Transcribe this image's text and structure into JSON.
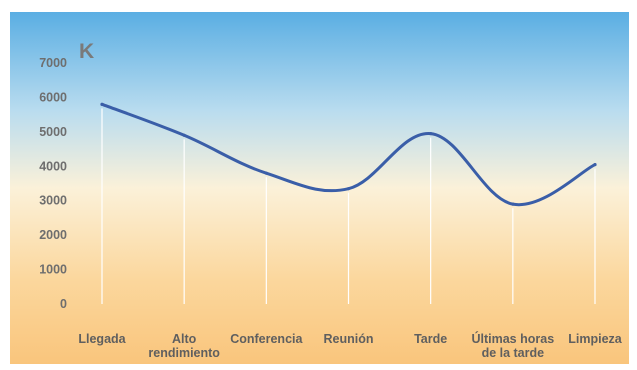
{
  "chart_data": {
    "type": "line",
    "unit_label": "K",
    "categories": [
      "Llegada",
      "Alto rendimiento",
      "Conferencia",
      "Reunión",
      "Tarde",
      "Últimas horas de la tarde",
      "Limpieza"
    ],
    "category_lines": [
      [
        "Llegada"
      ],
      [
        "Alto",
        "rendimiento"
      ],
      [
        "Conferencia"
      ],
      [
        "Reunión"
      ],
      [
        "Tarde"
      ],
      [
        "Últimas horas",
        "de la tarde"
      ],
      [
        "Limpieza"
      ]
    ],
    "series": [
      {
        "values": [
          5800,
          4900,
          3800,
          3350,
          4950,
          2900,
          4050
        ],
        "color": "#3a5ea8"
      }
    ],
    "yticks": [
      0,
      1000,
      2000,
      3000,
      4000,
      5000,
      6000,
      7000
    ],
    "ylim": [
      0,
      7000
    ],
    "grid": "vertical lines at categories"
  }
}
